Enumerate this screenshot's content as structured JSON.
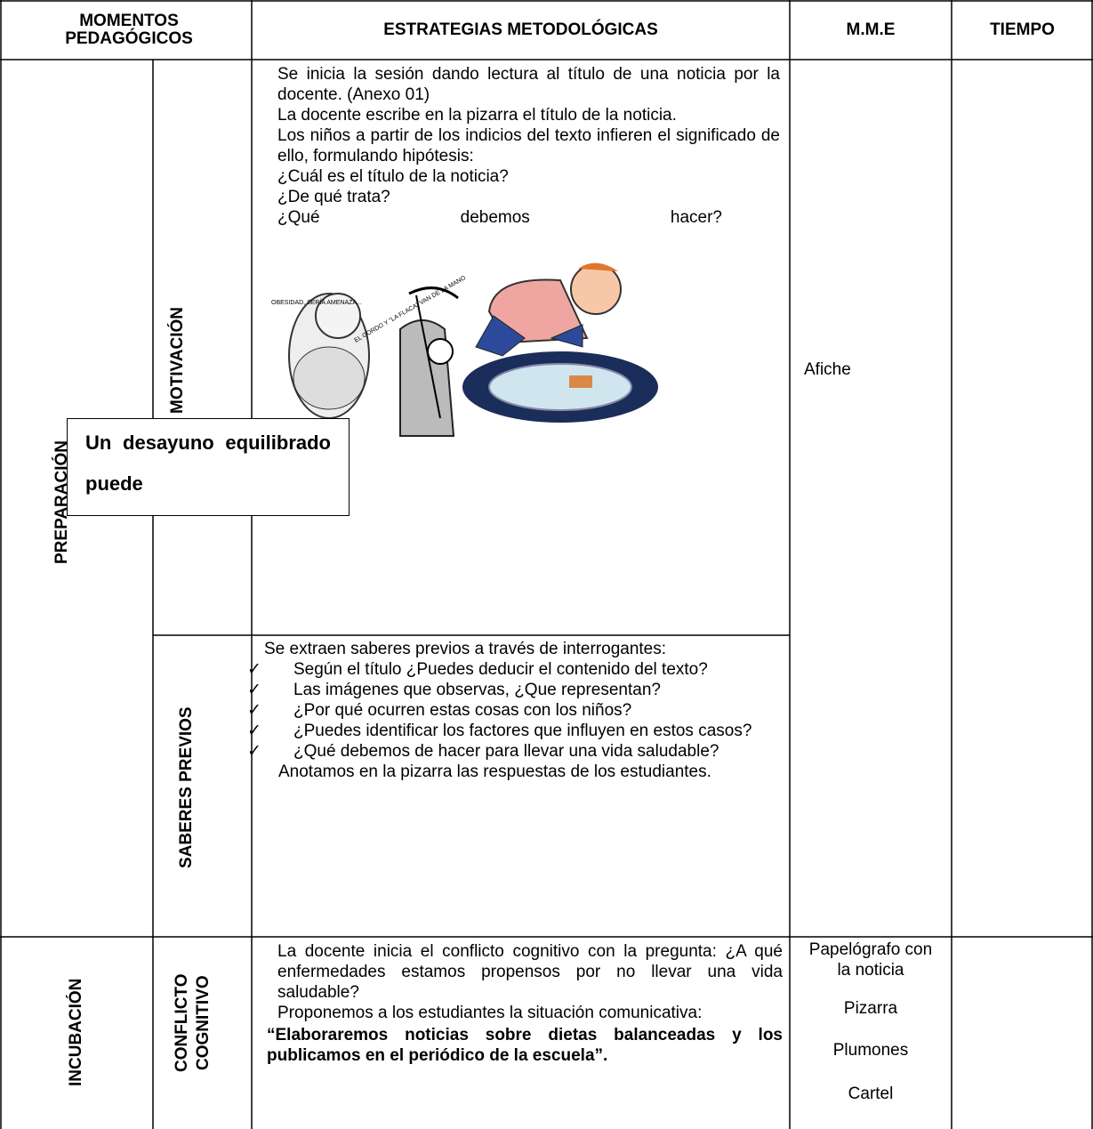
{
  "header": {
    "momentos": "MOMENTOS PEDAGÓGICOS",
    "estrategias": "ESTRATEGIAS METODOLÓGICAS",
    "mme": "M.M.E",
    "tiempo": "TIEMPO"
  },
  "sections": [
    {
      "moment": "PREPARACIÓN",
      "materials": [
        "Afiche"
      ],
      "steps": [
        {
          "name": "MOTIVACIÓN",
          "lines": [
            "Se inicia la sesión dando lectura  al título de una noticia por la docente. (Anexo 01)",
            "La docente escribe en la pizarra el título de la noticia.",
            "Los niños a partir de los indicios del texto infieren el significado de ello, formulando hipótesis:",
            "¿Cuál es el título de la noticia?",
            "¿De qué trata?",
            "¿Qué debemos hacer?"
          ],
          "cartoon": {
            "caption": "OBESIDAD, SERÍA AMENAZA...",
            "banner": "EL GORDO Y \"LA FLACA\" VAN DE LA MANO"
          },
          "notice": "Un desayuno equilibrado puede"
        },
        {
          "name": "SABERES PREVIOS",
          "intro": "Se extraen saberes previos a través de interrogantes:",
          "questions": [
            "Según el título ¿Puedes deducir el contenido del texto?",
            "Las imágenes que observas, ¿Que representan?",
            "¿Por qué ocurren estas cosas con los niños?",
            "¿Puedes identificar los factores que influyen en estos casos?",
            "¿Qué debemos de hacer para llevar una vida saludable?"
          ],
          "closing": "Anotamos en la pizarra las respuestas de los estudiantes."
        }
      ]
    },
    {
      "moment": "INCUBACIÓN",
      "materials": [
        "Papelógrafo con la noticia",
        "Pizarra",
        "Plumones",
        "Cartel"
      ],
      "steps": [
        {
          "name": "CONFLICTO COGNITIVO",
          "lines": [
            "La docente inicia el conflicto cognitivo con la pregunta: ¿A qué enfermedades estamos propensos por no llevar una vida saludable?",
            "Proponemos a los estudiantes la situación comunicativa:"
          ],
          "highlight": "“Elaboraremos  noticias sobre dietas balanceadas y los publicamos en el periódico de la escuela”."
        }
      ]
    }
  ]
}
